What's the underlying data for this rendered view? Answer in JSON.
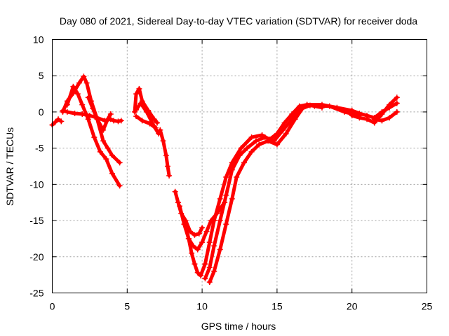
{
  "chart_data": {
    "type": "scatter",
    "title": "Day 080 of 2021, Sidereal Day-to-day VTEC variation (SDTVAR) for receiver doda",
    "xlabel": "GPS time / hours",
    "ylabel": "SDTVAR / TECUs",
    "xlim": [
      0,
      25
    ],
    "ylim": [
      -25,
      10
    ],
    "xticks": [
      0,
      5,
      10,
      15,
      20,
      25
    ],
    "yticks": [
      -25,
      -20,
      -15,
      -10,
      -5,
      0,
      5,
      10
    ],
    "grid": true,
    "color": "#ff0000",
    "series": [
      {
        "values": [
          [
            0,
            -1.8
          ],
          [
            0.2,
            -1.4
          ],
          [
            0.4,
            -1.0
          ],
          [
            0.6,
            -1.3
          ]
        ]
      },
      {
        "values": [
          [
            0.7,
            0.2
          ],
          [
            1.0,
            0.0
          ],
          [
            1.5,
            -0.2
          ],
          [
            2.0,
            -0.3
          ],
          [
            2.5,
            -0.5
          ],
          [
            3.0,
            -0.8
          ],
          [
            3.5,
            -1.2
          ],
          [
            3.9,
            -1.0
          ],
          [
            4.1,
            -1.2
          ],
          [
            4.4,
            -1.3
          ],
          [
            4.6,
            -1.2
          ]
        ]
      },
      {
        "values": [
          [
            0.7,
            0.0
          ],
          [
            1.0,
            1.5
          ],
          [
            1.4,
            2.6
          ],
          [
            1.8,
            4.0
          ],
          [
            2.1,
            4.9
          ],
          [
            2.3,
            4.0
          ],
          [
            2.6,
            1.5
          ],
          [
            3.0,
            -1.0
          ],
          [
            3.4,
            -4.0
          ],
          [
            3.7,
            -5.0
          ],
          [
            4.0,
            -6.0
          ],
          [
            4.5,
            -7.0
          ]
        ]
      },
      {
        "values": [
          [
            1.0,
            1.0
          ],
          [
            1.4,
            3.5
          ],
          [
            1.7,
            2.5
          ],
          [
            2.0,
            1.0
          ],
          [
            2.4,
            -1.0
          ],
          [
            2.8,
            -3.5
          ],
          [
            3.2,
            -5.5
          ],
          [
            3.6,
            -6.5
          ],
          [
            4.0,
            -8.5
          ],
          [
            4.5,
            -10.2
          ]
        ]
      },
      {
        "values": [
          [
            2.4,
            2.0
          ],
          [
            2.7,
            0.5
          ],
          [
            3.0,
            -1.0
          ],
          [
            3.4,
            -2.5
          ],
          [
            3.7,
            -1.0
          ],
          [
            3.9,
            -0.3
          ]
        ]
      },
      {
        "values": [
          [
            5.5,
            0.0
          ],
          [
            5.6,
            2.5
          ],
          [
            5.8,
            3.2
          ],
          [
            6.0,
            1.5
          ],
          [
            6.4,
            0.2
          ],
          [
            6.8,
            -1.0
          ],
          [
            7.0,
            -1.5
          ]
        ]
      },
      {
        "values": [
          [
            5.6,
            0.3
          ],
          [
            5.9,
            1.2
          ],
          [
            6.3,
            0.0
          ],
          [
            6.8,
            -2.0
          ],
          [
            7.1,
            -3.0
          ]
        ]
      },
      {
        "values": [
          [
            5.6,
            -0.6
          ],
          [
            6.0,
            -1.2
          ],
          [
            6.5,
            -1.6
          ],
          [
            6.9,
            -2.2
          ]
        ]
      },
      {
        "values": [
          [
            7.2,
            -2.5
          ],
          [
            7.4,
            -4.0
          ],
          [
            7.6,
            -6.0
          ],
          [
            7.7,
            -7.5
          ],
          [
            7.8,
            -8.8
          ]
        ]
      },
      {
        "values": [
          [
            8.2,
            -11.0
          ],
          [
            8.4,
            -12.5
          ],
          [
            8.6,
            -14.0
          ],
          [
            8.9,
            -15.0
          ],
          [
            9.2,
            -16.5
          ],
          [
            9.5,
            -17.0
          ],
          [
            9.8,
            -16.8
          ],
          [
            10.0,
            -16.0
          ]
        ]
      },
      {
        "values": [
          [
            8.5,
            -13.0
          ],
          [
            8.8,
            -15.5
          ],
          [
            9.1,
            -17.5
          ],
          [
            9.4,
            -18.5
          ],
          [
            9.7,
            -19.0
          ],
          [
            10.0,
            -18.0
          ],
          [
            10.3,
            -16.5
          ],
          [
            10.6,
            -15.0
          ],
          [
            11.0,
            -14.0
          ],
          [
            11.5,
            -12.5
          ]
        ]
      },
      {
        "values": [
          [
            8.8,
            -15.0
          ],
          [
            9.1,
            -17.5
          ],
          [
            9.3,
            -19.5
          ],
          [
            9.5,
            -21.0
          ],
          [
            9.7,
            -22.2
          ],
          [
            9.9,
            -22.6
          ],
          [
            10.2,
            -21.0
          ],
          [
            10.5,
            -18.0
          ],
          [
            10.8,
            -15.0
          ],
          [
            11.2,
            -12.0
          ],
          [
            11.6,
            -9.0
          ],
          [
            12.0,
            -7.0
          ],
          [
            12.6,
            -5.0
          ],
          [
            13.3,
            -3.5
          ],
          [
            14.0,
            -3.2
          ],
          [
            14.5,
            -3.8
          ],
          [
            15.0,
            -3.0
          ],
          [
            15.5,
            -1.5
          ],
          [
            16.0,
            -0.3
          ],
          [
            16.5,
            0.8
          ],
          [
            17.0,
            1.0
          ],
          [
            17.5,
            0.8
          ],
          [
            18.0,
            0.6
          ]
        ]
      },
      {
        "values": [
          [
            10.2,
            -23.0
          ],
          [
            10.5,
            -21.5
          ],
          [
            10.8,
            -18.5
          ],
          [
            11.2,
            -15.0
          ],
          [
            11.6,
            -11.5
          ],
          [
            12.0,
            -8.0
          ],
          [
            12.5,
            -6.0
          ],
          [
            13.0,
            -5.0
          ],
          [
            13.6,
            -4.0
          ],
          [
            14.2,
            -3.5
          ],
          [
            14.8,
            -4.0
          ],
          [
            15.4,
            -2.5
          ],
          [
            16.0,
            -1.0
          ],
          [
            16.5,
            0.3
          ],
          [
            17.0,
            1.0
          ],
          [
            18.0,
            1.0
          ],
          [
            19.0,
            0.6
          ],
          [
            20.0,
            0.2
          ]
        ]
      },
      {
        "values": [
          [
            10.5,
            -23.5
          ],
          [
            10.8,
            -22.0
          ],
          [
            11.2,
            -19.0
          ],
          [
            11.6,
            -15.5
          ],
          [
            12.0,
            -12.0
          ],
          [
            12.3,
            -9.0
          ],
          [
            12.8,
            -7.0
          ],
          [
            13.3,
            -5.5
          ],
          [
            13.8,
            -4.5
          ],
          [
            14.4,
            -4.0
          ],
          [
            15.0,
            -4.5
          ],
          [
            15.6,
            -3.0
          ],
          [
            16.2,
            -1.0
          ],
          [
            16.7,
            0.5
          ],
          [
            17.2,
            0.9
          ],
          [
            18.5,
            0.8
          ],
          [
            19.5,
            0.0
          ],
          [
            20.5,
            -0.5
          ]
        ]
      },
      {
        "values": [
          [
            20.0,
            -0.5
          ],
          [
            20.5,
            -0.8
          ],
          [
            21.0,
            -1.0
          ],
          [
            21.5,
            -1.5
          ],
          [
            22.0,
            -0.3
          ],
          [
            22.5,
            1.0
          ],
          [
            23.0,
            2.0
          ]
        ]
      },
      {
        "values": [
          [
            20.0,
            0.2
          ],
          [
            20.5,
            -0.2
          ],
          [
            21.0,
            -0.5
          ],
          [
            21.5,
            -0.8
          ],
          [
            22.0,
            0.0
          ],
          [
            22.5,
            0.6
          ],
          [
            23.0,
            1.2
          ]
        ]
      },
      {
        "values": [
          [
            21.5,
            -1.0
          ],
          [
            22.0,
            -1.2
          ],
          [
            22.5,
            -0.8
          ],
          [
            23.0,
            0.0
          ]
        ]
      }
    ]
  }
}
